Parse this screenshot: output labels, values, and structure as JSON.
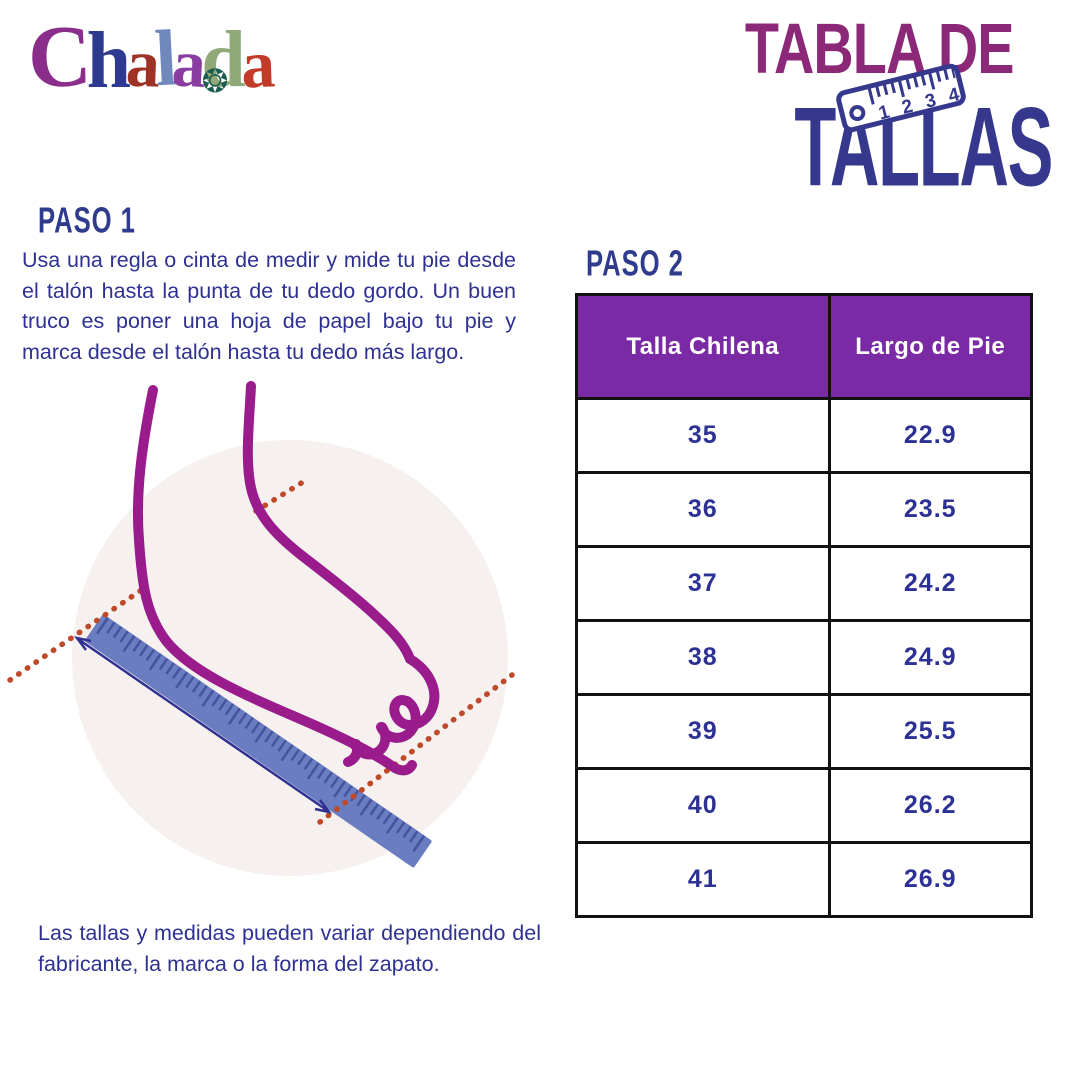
{
  "logo": {
    "name": "Chalada",
    "letters": [
      {
        "char": "C",
        "color": "#8b2d8b",
        "size": 88
      },
      {
        "char": "h",
        "color": "#2e3a90",
        "size": 80
      },
      {
        "char": "a",
        "color": "#9e3226",
        "size": 68
      },
      {
        "char": "l",
        "color": "#7188bd",
        "size": 80
      },
      {
        "char": "a",
        "color": "#8a3da0",
        "size": 68
      },
      {
        "char": "d",
        "color": "#8faa78",
        "size": 80,
        "flower": true
      },
      {
        "char": "a",
        "color": "#c23b28",
        "size": 68
      }
    ],
    "flower_glyph": "❂",
    "flower_color": "#1d5c50"
  },
  "title": {
    "line1": "TABLA DE",
    "line2": "TALLAS",
    "line1_color": "#8c2878",
    "line2_color": "#35388d",
    "ruler_numbers": [
      "1",
      "2",
      "3",
      "4"
    ]
  },
  "paso1": {
    "heading": "PASO 1",
    "body": "Usa una regla o cinta de medir y mide tu pie desde el talón hasta la punta de tu dedo gordo. Un buen truco es poner una hoja de papel bajo tu pie y marca desde el talón hasta tu dedo más largo."
  },
  "paso2": {
    "heading": "PASO 2"
  },
  "note": "Las tallas y medidas pueden variar dependiendo del fabricante, la marca o la forma del zapato.",
  "colors": {
    "body_text": "#2e3192",
    "heading": "#2f3b8c"
  },
  "illustration": {
    "description": "foot measured diagonally with ruler, guide dotted lines at heel and toe",
    "circle_bg": "#f6f1ef",
    "foot_color": "#9a1b8c",
    "ruler_color": "#6b7dc1",
    "ruler_tick_color": "#44549f",
    "dotted_line_color": "#bf4a2b",
    "arrow_color": "#2e3192"
  },
  "size_table": {
    "headers": [
      "Talla Chilena",
      "Largo de Pie"
    ],
    "header_bg": "#7a2aa4",
    "header_text_color": "#ffffff",
    "value_color": "#2c3193",
    "border_color": "#111111",
    "rows": [
      [
        "35",
        "22.9"
      ],
      [
        "36",
        "23.5"
      ],
      [
        "37",
        "24.2"
      ],
      [
        "38",
        "24.9"
      ],
      [
        "39",
        "25.5"
      ],
      [
        "40",
        "26.2"
      ],
      [
        "41",
        "26.9"
      ]
    ]
  }
}
